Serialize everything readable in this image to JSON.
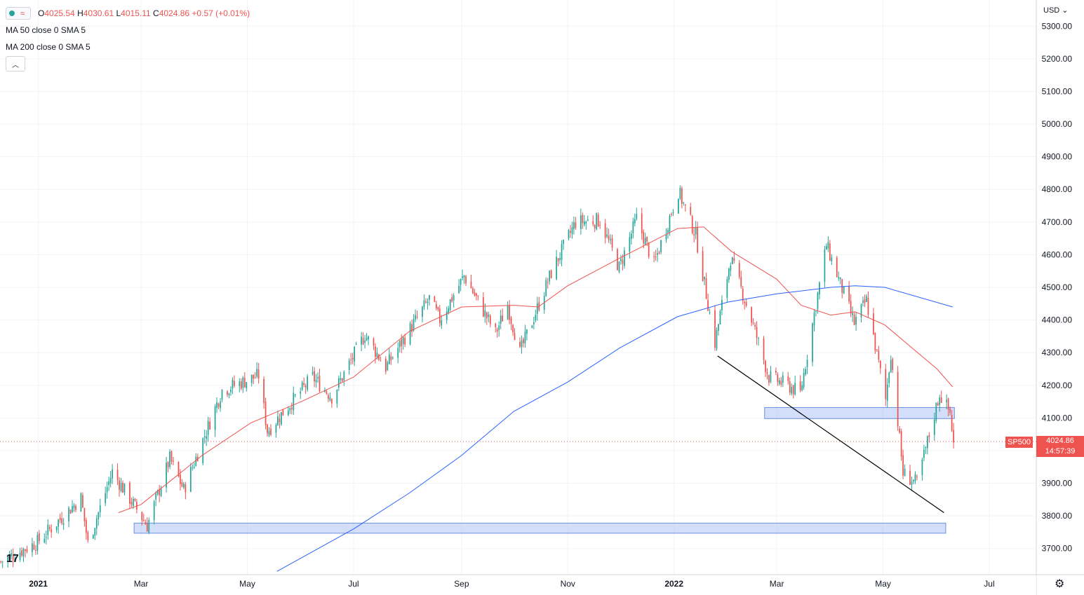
{
  "header": {
    "o_label": "O",
    "o_value": "4025.54",
    "h_label": "H",
    "h_value": "4030.61",
    "l_label": "L",
    "l_value": "4015.11",
    "c_label": "C",
    "c_value": "4024.86",
    "change": "+0.57 (+0.01%)",
    "ma50": "MA 50 close 0 SMA 5",
    "ma200": "MA 200 close 0 SMA 5",
    "currency": "USD"
  },
  "price_tag": {
    "symbol": "SP500",
    "price": "4024.86",
    "countdown": "14:57:39"
  },
  "colors": {
    "up": "#26a69a",
    "down": "#ef5350",
    "ma50": "#ef5350",
    "ma200": "#2962ff",
    "zone": "#aec4f5",
    "trend": "#000000",
    "grid": "#f0f3fa"
  },
  "icons": {
    "logo": "tradingview-logo-icon",
    "settings": "gear-icon",
    "collapse": "chevron-up-icon"
  },
  "chart_data": {
    "type": "candlestick",
    "symbol": "SP500",
    "ylim": [
      3620,
      5380
    ],
    "y_ticks": [
      "5300.00",
      "5200.00",
      "5100.00",
      "5000.00",
      "4900.00",
      "4800.00",
      "4700.00",
      "4600.00",
      "4500.00",
      "4400.00",
      "4300.00",
      "4200.00",
      "4100.00",
      "4000.00",
      "3900.00",
      "3800.00",
      "3700.00"
    ],
    "x_ticks": [
      "2021",
      "Mar",
      "May",
      "Jul",
      "Sep",
      "Nov",
      "2022",
      "Mar",
      "May",
      "Jul"
    ],
    "x_range": [
      "2020-12-10",
      "2022-07-28"
    ],
    "price_path": [
      [
        "2020-12-10",
        3660
      ],
      [
        "2020-12-31",
        3720
      ],
      [
        "2021-01-25",
        3855
      ],
      [
        "2021-01-29",
        3715
      ],
      [
        "2021-02-12",
        3935
      ],
      [
        "2021-03-04",
        3770
      ],
      [
        "2021-03-17",
        3975
      ],
      [
        "2021-03-25",
        3880
      ],
      [
        "2021-04-16",
        4185
      ],
      [
        "2021-05-07",
        4230
      ],
      [
        "2021-05-12",
        4060
      ],
      [
        "2021-06-07",
        4225
      ],
      [
        "2021-06-18",
        4165
      ],
      [
        "2021-07-07",
        4355
      ],
      [
        "2021-07-19",
        4255
      ],
      [
        "2021-08-13",
        4465
      ],
      [
        "2021-08-19",
        4400
      ],
      [
        "2021-09-02",
        4535
      ],
      [
        "2021-09-20",
        4360
      ],
      [
        "2021-09-27",
        4445
      ],
      [
        "2021-10-04",
        4300
      ],
      [
        "2021-10-22",
        4545
      ],
      [
        "2021-11-05",
        4700
      ],
      [
        "2021-11-19",
        4705
      ],
      [
        "2021-11-30",
        4560
      ],
      [
        "2021-12-10",
        4710
      ],
      [
        "2021-12-20",
        4570
      ],
      [
        "2022-01-03",
        4795
      ],
      [
        "2022-01-13",
        4660
      ],
      [
        "2022-01-24",
        4330
      ],
      [
        "2022-02-02",
        4590
      ],
      [
        "2022-02-14",
        4400
      ],
      [
        "2022-02-24",
        4225
      ],
      [
        "2022-03-07",
        4200
      ],
      [
        "2022-03-14",
        4175
      ],
      [
        "2022-03-29",
        4630
      ],
      [
        "2022-04-14",
        4390
      ],
      [
        "2022-04-21",
        4460
      ],
      [
        "2022-05-02",
        4155
      ],
      [
        "2022-05-05",
        4300
      ],
      [
        "2022-05-12",
        3930
      ],
      [
        "2022-05-20",
        3900
      ],
      [
        "2022-06-02",
        4175
      ],
      [
        "2022-06-08",
        4115
      ],
      [
        "2022-06-10",
        4025
      ]
    ],
    "series": [
      {
        "name": "MA 50 close 0 SMA 5",
        "values": [
          [
            "2021-02-16",
            3810
          ],
          [
            "2021-03-01",
            3835
          ],
          [
            "2021-04-05",
            3985
          ],
          [
            "2021-05-03",
            4085
          ],
          [
            "2021-06-01",
            4150
          ],
          [
            "2021-07-01",
            4225
          ],
          [
            "2021-08-02",
            4365
          ],
          [
            "2021-09-01",
            4440
          ],
          [
            "2021-10-01",
            4445
          ],
          [
            "2021-10-15",
            4440
          ],
          [
            "2021-11-01",
            4505
          ],
          [
            "2021-12-01",
            4590
          ],
          [
            "2022-01-03",
            4680
          ],
          [
            "2022-01-18",
            4685
          ],
          [
            "2022-02-03",
            4610
          ],
          [
            "2022-03-01",
            4525
          ],
          [
            "2022-03-15",
            4445
          ],
          [
            "2022-04-01",
            4415
          ],
          [
            "2022-04-15",
            4425
          ],
          [
            "2022-05-02",
            4385
          ],
          [
            "2022-06-01",
            4250
          ],
          [
            "2022-06-10",
            4195
          ]
        ]
      },
      {
        "name": "MA 200 close 0 SMA 5",
        "values": [
          [
            "2021-05-18",
            3630
          ],
          [
            "2021-07-01",
            3760
          ],
          [
            "2021-08-02",
            3870
          ],
          [
            "2021-09-01",
            3985
          ],
          [
            "2021-10-01",
            4120
          ],
          [
            "2021-11-01",
            4210
          ],
          [
            "2021-12-01",
            4315
          ],
          [
            "2022-01-03",
            4410
          ],
          [
            "2022-02-01",
            4455
          ],
          [
            "2022-03-01",
            4480
          ],
          [
            "2022-04-01",
            4500
          ],
          [
            "2022-04-15",
            4505
          ],
          [
            "2022-05-02",
            4500
          ],
          [
            "2022-06-10",
            4440
          ]
        ]
      }
    ],
    "zones": [
      {
        "from": "2022-02-22",
        "to": "2022-06-11",
        "low": 4098,
        "high": 4132
      },
      {
        "from": "2021-02-25",
        "to": "2022-06-06",
        "low": 3747,
        "high": 3778
      }
    ],
    "trendline": {
      "from": [
        "2022-01-26",
        4290
      ],
      "to": [
        "2022-06-05",
        3810
      ]
    },
    "last_price": 4024.86
  }
}
